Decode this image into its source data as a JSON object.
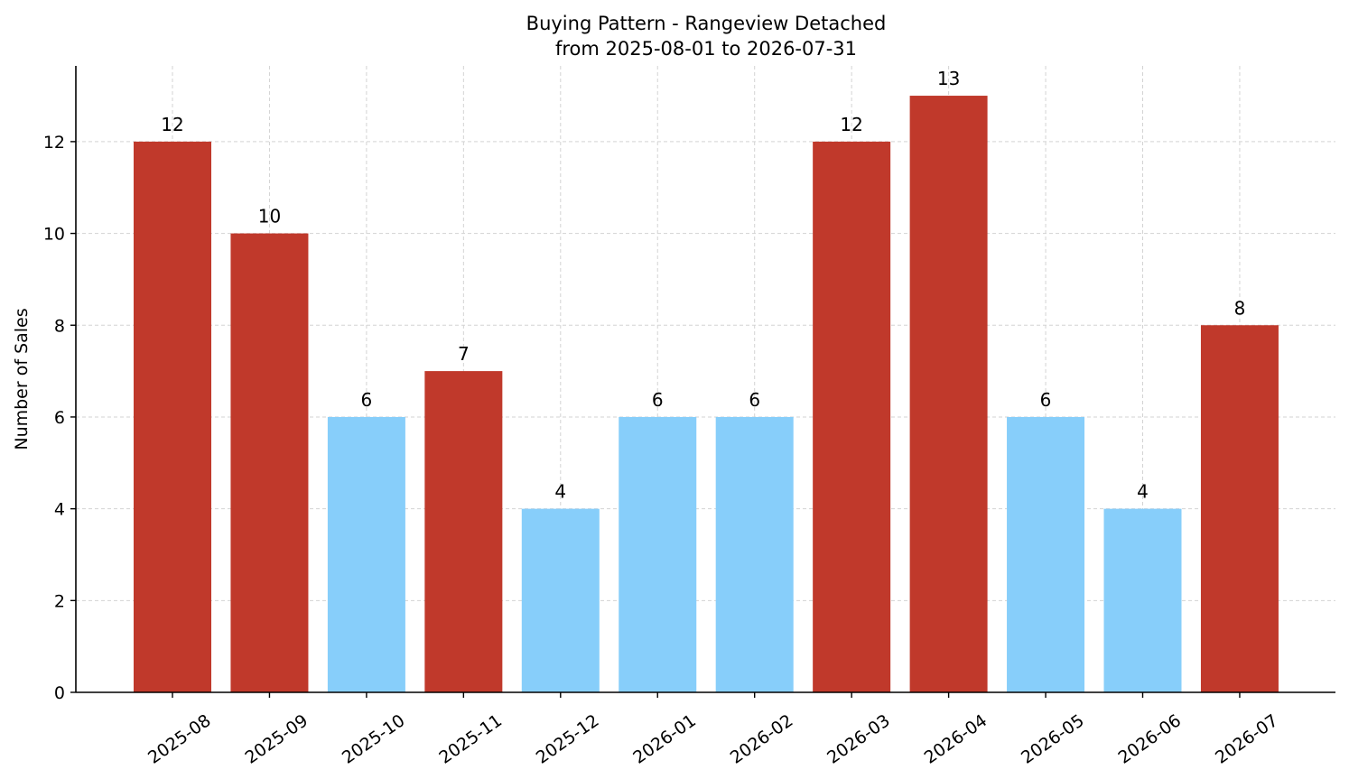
{
  "chart_data": {
    "type": "bar",
    "title": "Buying Pattern - Rangeview Detached",
    "subtitle": "from 2025-08-01 to 2026-07-31",
    "xlabel": "",
    "ylabel": "Number of Sales",
    "ylim": [
      0,
      13.65
    ],
    "yticks": [
      0,
      2,
      4,
      6,
      8,
      10,
      12
    ],
    "grid": true,
    "categories": [
      "2025-08",
      "2025-09",
      "2025-10",
      "2025-11",
      "2025-12",
      "2026-01",
      "2026-02",
      "2026-03",
      "2026-04",
      "2026-05",
      "2026-06",
      "2026-07"
    ],
    "values": [
      12,
      10,
      6,
      7,
      4,
      6,
      6,
      12,
      13,
      6,
      4,
      8
    ],
    "bar_colors": [
      "#c0392b",
      "#c0392b",
      "#87cefa",
      "#c0392b",
      "#87cefa",
      "#87cefa",
      "#87cefa",
      "#c0392b",
      "#c0392b",
      "#87cefa",
      "#87cefa",
      "#c0392b"
    ]
  }
}
